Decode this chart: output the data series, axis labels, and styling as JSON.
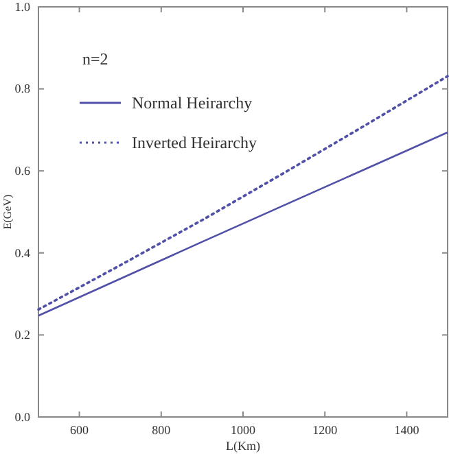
{
  "chart_data": {
    "type": "line",
    "xlabel": "L(Km)",
    "ylabel": "E(GeV)",
    "legend_title": "n=2",
    "legend": "top left",
    "grid": false,
    "x": [
      500,
      700,
      900,
      1100,
      1300,
      1500
    ],
    "series": [
      {
        "name": "Normal Heirarchy",
        "color": "#5050a8",
        "line_style": "solid",
        "values": [
          0.247,
          0.337,
          0.427,
          0.516,
          0.605,
          0.694
        ]
      },
      {
        "name": "Inverted Heirarchy",
        "color": "#5050a8",
        "line_style": "dotted",
        "values": [
          0.262,
          0.37,
          0.48,
          0.595,
          0.712,
          0.831
        ]
      }
    ],
    "xlim": [
      500,
      1500
    ],
    "xticks": [
      600,
      800,
      1000,
      1200,
      1400
    ],
    "ylim": [
      0,
      1.0
    ],
    "yticks": [
      {
        "value": 0,
        "label": "0.0"
      },
      0.2,
      0.4,
      0.6,
      0.8,
      {
        "value": 1,
        "label": "1.0"
      }
    ]
  }
}
